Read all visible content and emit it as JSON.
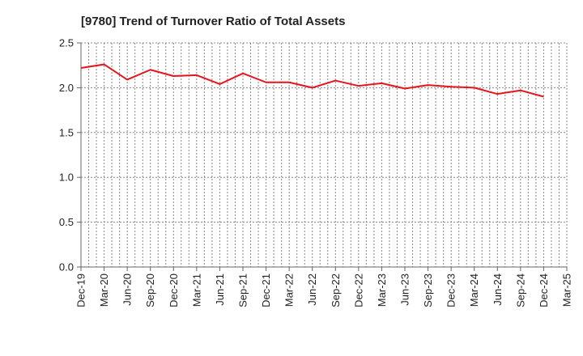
{
  "chart_data": {
    "type": "line",
    "title": "[9780]  Trend of Turnover Ratio of Total Assets",
    "xlabel": "",
    "ylabel": "",
    "ylim": [
      0,
      2.5
    ],
    "y_ticks": [
      "0.0",
      "0.5",
      "1.0",
      "1.5",
      "2.0",
      "2.5"
    ],
    "x_ticks": [
      "Dec-19",
      "Mar-20",
      "Jun-20",
      "Sep-20",
      "Dec-20",
      "Mar-21",
      "Jun-21",
      "Sep-21",
      "Dec-21",
      "Mar-22",
      "Jun-22",
      "Sep-22",
      "Dec-22",
      "Mar-23",
      "Jun-23",
      "Sep-23",
      "Dec-23",
      "Mar-24",
      "Jun-24",
      "Sep-24",
      "Dec-24",
      "Mar-25"
    ],
    "grid": true,
    "legend": "none",
    "colors": {
      "line": "#e8141c",
      "grid": "#888888",
      "axis": "#666666"
    },
    "series": [
      {
        "x": [
          "Dec-19",
          "Mar-20",
          "Jun-20",
          "Sep-20",
          "Dec-20",
          "Mar-21",
          "Jun-21",
          "Sep-21",
          "Dec-21",
          "Mar-22",
          "Jun-22",
          "Sep-22",
          "Dec-22",
          "Mar-23",
          "Jun-23",
          "Sep-23",
          "Dec-23",
          "Mar-24",
          "Jun-24",
          "Sep-24",
          "Dec-24"
        ],
        "values": [
          2.22,
          2.26,
          2.09,
          2.2,
          2.13,
          2.14,
          2.04,
          2.16,
          2.06,
          2.06,
          2.0,
          2.08,
          2.02,
          2.05,
          1.99,
          2.03,
          2.01,
          2.0,
          1.93,
          1.97,
          1.9
        ]
      }
    ]
  }
}
